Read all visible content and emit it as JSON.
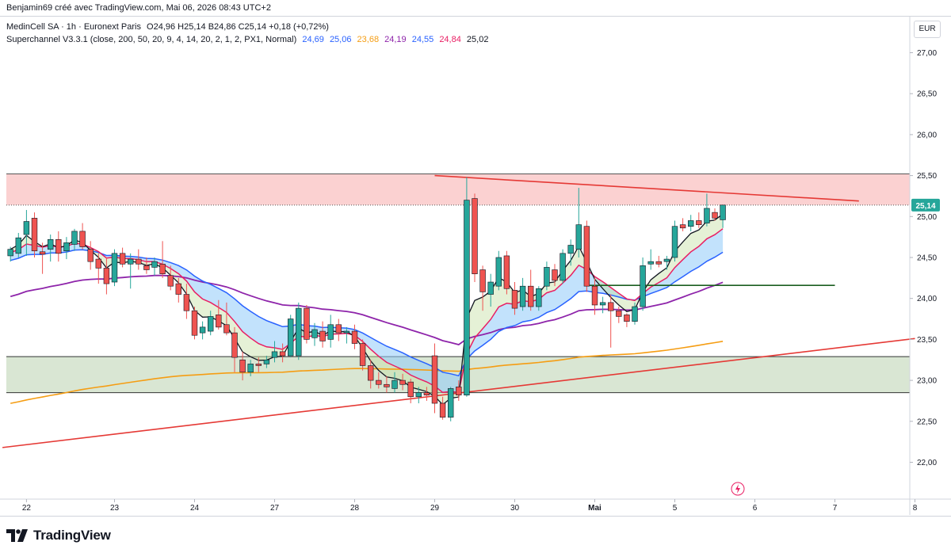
{
  "caption": "Benjamin69 créé avec TradingView.com, Mai 06, 2026 08:43 UTC+2",
  "legend": {
    "symbol_line": "MedinCell SA · 1h · Euronext Paris",
    "ohlc": "O24,96 H25,14 B24,86 C25,14 +0,18 (+0,72%)",
    "indicator_name": "Superchannel V3.3.1 (close, 200, 50, 20, 9, 4, 14, 20, 2, 1, 2, PX1, Normal)",
    "indicator_values": [
      {
        "text": "24,69",
        "color": "#2962ff"
      },
      {
        "text": "25,06",
        "color": "#2962ff"
      },
      {
        "text": "23,68",
        "color": "#f59d13"
      },
      {
        "text": "24,19",
        "color": "#8e24aa"
      },
      {
        "text": "24,55",
        "color": "#2962ff"
      },
      {
        "text": "24,84",
        "color": "#e91e63"
      },
      {
        "text": "25,02",
        "color": "#131722"
      }
    ]
  },
  "currency_label": "EUR",
  "brand": "TradingView",
  "colors": {
    "up": "#26a69a",
    "down": "#ef5350",
    "ema_fast": "#e91e63",
    "ema_slow": "#2962ff",
    "ema_50": "#8e24aa",
    "ema_200": "#f59d13",
    "trend_red": "#e53935",
    "support_line": "#1b5e20",
    "resistance_zone": "#f8b3b3",
    "support_zone": "#c9dcc0"
  },
  "chart_data": {
    "type": "candlestick",
    "title": "MedinCell SA · 1h · Euronext Paris",
    "y_axis_ticks": [
      "27,00",
      "26,50",
      "26,00",
      "25,50",
      "25,00",
      "24,50",
      "24,00",
      "23,50",
      "23,00",
      "22,50",
      "22,00"
    ],
    "x_axis_ticks": [
      "22",
      "23",
      "24",
      "27",
      "28",
      "29",
      "30",
      "Mai",
      "5",
      "6",
      "7",
      "8"
    ],
    "ylim": [
      21.55,
      27.45
    ],
    "last_price": 25.14,
    "last_price_label": "25,14",
    "candles": [
      {
        "o": 24.52,
        "h": 24.63,
        "l": 24.45,
        "c": 24.6
      },
      {
        "o": 24.55,
        "h": 24.8,
        "l": 24.5,
        "c": 24.74
      },
      {
        "o": 24.78,
        "h": 25.08,
        "l": 24.52,
        "c": 24.94
      },
      {
        "o": 24.98,
        "h": 25.05,
        "l": 24.5,
        "c": 24.58
      },
      {
        "o": 24.57,
        "h": 24.68,
        "l": 24.3,
        "c": 24.54
      },
      {
        "o": 24.6,
        "h": 24.78,
        "l": 24.45,
        "c": 24.72
      },
      {
        "o": 24.72,
        "h": 24.82,
        "l": 24.45,
        "c": 24.55
      },
      {
        "o": 24.58,
        "h": 24.75,
        "l": 24.48,
        "c": 24.68
      },
      {
        "o": 24.66,
        "h": 24.85,
        "l": 24.58,
        "c": 24.82
      },
      {
        "o": 24.82,
        "h": 24.92,
        "l": 24.6,
        "c": 24.63
      },
      {
        "o": 24.6,
        "h": 24.7,
        "l": 24.35,
        "c": 24.45
      },
      {
        "o": 24.48,
        "h": 24.55,
        "l": 24.18,
        "c": 24.37
      },
      {
        "o": 24.37,
        "h": 24.5,
        "l": 24.05,
        "c": 24.18
      },
      {
        "o": 24.2,
        "h": 24.6,
        "l": 24.15,
        "c": 24.55
      },
      {
        "o": 24.55,
        "h": 24.62,
        "l": 24.38,
        "c": 24.42
      },
      {
        "o": 24.42,
        "h": 24.55,
        "l": 24.12,
        "c": 24.48
      },
      {
        "o": 24.48,
        "h": 24.6,
        "l": 24.35,
        "c": 24.42
      },
      {
        "o": 24.4,
        "h": 24.5,
        "l": 24.3,
        "c": 24.35
      },
      {
        "o": 24.38,
        "h": 24.5,
        "l": 24.28,
        "c": 24.45
      },
      {
        "o": 24.42,
        "h": 24.7,
        "l": 24.25,
        "c": 24.3
      },
      {
        "o": 24.28,
        "h": 24.4,
        "l": 24.1,
        "c": 24.15
      },
      {
        "o": 24.18,
        "h": 24.25,
        "l": 23.95,
        "c": 24.05
      },
      {
        "o": 24.05,
        "h": 24.18,
        "l": 23.75,
        "c": 23.85
      },
      {
        "o": 23.85,
        "h": 23.9,
        "l": 23.5,
        "c": 23.55
      },
      {
        "o": 23.58,
        "h": 23.72,
        "l": 23.5,
        "c": 23.65
      },
      {
        "o": 23.6,
        "h": 23.85,
        "l": 23.55,
        "c": 23.78
      },
      {
        "o": 23.8,
        "h": 23.98,
        "l": 23.62,
        "c": 23.65
      },
      {
        "o": 23.68,
        "h": 23.95,
        "l": 23.55,
        "c": 23.58
      },
      {
        "o": 23.58,
        "h": 23.65,
        "l": 23.1,
        "c": 23.28
      },
      {
        "o": 23.25,
        "h": 23.35,
        "l": 23.0,
        "c": 23.1
      },
      {
        "o": 23.1,
        "h": 23.25,
        "l": 23.05,
        "c": 23.2
      },
      {
        "o": 23.2,
        "h": 23.28,
        "l": 23.1,
        "c": 23.18
      },
      {
        "o": 23.2,
        "h": 23.3,
        "l": 23.15,
        "c": 23.25
      },
      {
        "o": 23.28,
        "h": 23.48,
        "l": 23.22,
        "c": 23.35
      },
      {
        "o": 23.35,
        "h": 23.45,
        "l": 23.22,
        "c": 23.3
      },
      {
        "o": 23.3,
        "h": 23.8,
        "l": 23.28,
        "c": 23.75
      },
      {
        "o": 23.3,
        "h": 23.95,
        "l": 23.25,
        "c": 23.88
      },
      {
        "o": 23.88,
        "h": 23.92,
        "l": 23.45,
        "c": 23.5
      },
      {
        "o": 23.52,
        "h": 23.7,
        "l": 23.42,
        "c": 23.62
      },
      {
        "o": 23.6,
        "h": 23.72,
        "l": 23.4,
        "c": 23.48
      },
      {
        "o": 23.5,
        "h": 23.8,
        "l": 23.4,
        "c": 23.68
      },
      {
        "o": 23.68,
        "h": 23.75,
        "l": 23.48,
        "c": 23.58
      },
      {
        "o": 23.58,
        "h": 23.65,
        "l": 23.45,
        "c": 23.6
      },
      {
        "o": 23.6,
        "h": 23.68,
        "l": 23.38,
        "c": 23.45
      },
      {
        "o": 23.45,
        "h": 23.5,
        "l": 23.12,
        "c": 23.18
      },
      {
        "o": 23.18,
        "h": 23.25,
        "l": 22.9,
        "c": 23.0
      },
      {
        "o": 23.0,
        "h": 23.1,
        "l": 22.9,
        "c": 22.95
      },
      {
        "o": 22.95,
        "h": 23.05,
        "l": 22.85,
        "c": 22.92
      },
      {
        "o": 22.9,
        "h": 23.1,
        "l": 22.85,
        "c": 23.0
      },
      {
        "o": 23.0,
        "h": 23.08,
        "l": 22.88,
        "c": 22.95
      },
      {
        "o": 22.98,
        "h": 23.02,
        "l": 22.72,
        "c": 22.8
      },
      {
        "o": 22.8,
        "h": 22.92,
        "l": 22.72,
        "c": 22.85
      },
      {
        "o": 22.85,
        "h": 22.92,
        "l": 22.75,
        "c": 22.82
      },
      {
        "o": 23.3,
        "h": 23.45,
        "l": 22.6,
        "c": 22.72
      },
      {
        "o": 22.72,
        "h": 22.8,
        "l": 22.52,
        "c": 22.55
      },
      {
        "o": 22.55,
        "h": 22.92,
        "l": 22.5,
        "c": 22.9
      },
      {
        "o": 22.92,
        "h": 23.0,
        "l": 22.75,
        "c": 22.82
      },
      {
        "o": 22.82,
        "h": 25.48,
        "l": 22.8,
        "c": 25.2
      },
      {
        "o": 25.22,
        "h": 25.28,
        "l": 24.2,
        "c": 24.3
      },
      {
        "o": 24.35,
        "h": 24.4,
        "l": 23.85,
        "c": 24.08
      },
      {
        "o": 24.05,
        "h": 24.3,
        "l": 23.9,
        "c": 24.2
      },
      {
        "o": 24.15,
        "h": 24.58,
        "l": 24.1,
        "c": 24.5
      },
      {
        "o": 24.52,
        "h": 24.58,
        "l": 24.05,
        "c": 24.12
      },
      {
        "o": 24.1,
        "h": 24.2,
        "l": 23.8,
        "c": 23.88
      },
      {
        "o": 23.9,
        "h": 24.25,
        "l": 23.85,
        "c": 24.15
      },
      {
        "o": 24.15,
        "h": 24.35,
        "l": 23.85,
        "c": 23.9
      },
      {
        "o": 23.9,
        "h": 24.15,
        "l": 23.85,
        "c": 24.12
      },
      {
        "o": 24.15,
        "h": 24.45,
        "l": 24.1,
        "c": 24.38
      },
      {
        "o": 24.35,
        "h": 24.42,
        "l": 24.15,
        "c": 24.22
      },
      {
        "o": 24.22,
        "h": 24.6,
        "l": 24.18,
        "c": 24.55
      },
      {
        "o": 24.55,
        "h": 24.72,
        "l": 24.4,
        "c": 24.65
      },
      {
        "o": 24.6,
        "h": 25.35,
        "l": 24.5,
        "c": 24.9
      },
      {
        "o": 24.88,
        "h": 24.95,
        "l": 24.08,
        "c": 24.15
      },
      {
        "o": 24.15,
        "h": 24.25,
        "l": 23.8,
        "c": 23.92
      },
      {
        "o": 23.92,
        "h": 24.02,
        "l": 23.82,
        "c": 23.95
      },
      {
        "o": 23.95,
        "h": 24.05,
        "l": 23.4,
        "c": 23.85
      },
      {
        "o": 23.85,
        "h": 23.9,
        "l": 23.7,
        "c": 23.78
      },
      {
        "o": 23.8,
        "h": 23.82,
        "l": 23.65,
        "c": 23.72
      },
      {
        "o": 23.72,
        "h": 23.95,
        "l": 23.68,
        "c": 23.9
      },
      {
        "o": 23.9,
        "h": 24.5,
        "l": 23.85,
        "c": 24.4
      },
      {
        "o": 24.42,
        "h": 24.6,
        "l": 24.35,
        "c": 24.45
      },
      {
        "o": 24.45,
        "h": 24.52,
        "l": 24.38,
        "c": 24.42
      },
      {
        "o": 24.45,
        "h": 24.52,
        "l": 24.35,
        "c": 24.48
      },
      {
        "o": 24.5,
        "h": 24.95,
        "l": 24.45,
        "c": 24.88
      },
      {
        "o": 24.9,
        "h": 24.98,
        "l": 24.82,
        "c": 24.86
      },
      {
        "o": 24.88,
        "h": 25.02,
        "l": 24.82,
        "c": 24.95
      },
      {
        "o": 24.95,
        "h": 25.05,
        "l": 24.86,
        "c": 24.9
      },
      {
        "o": 24.92,
        "h": 25.28,
        "l": 24.88,
        "c": 25.1
      },
      {
        "o": 25.05,
        "h": 25.1,
        "l": 24.95,
        "c": 24.98
      },
      {
        "o": 24.96,
        "h": 25.14,
        "l": 24.86,
        "c": 25.14
      }
    ],
    "x_labels_at_candle": {
      "22": 2,
      "23": 13,
      "24": 23,
      "27": 33,
      "28": 43,
      "29": 53,
      "30": 63,
      "Mai": 73,
      "5": 83,
      "6": 93,
      "7": 103,
      "8": 113
    },
    "zones": [
      {
        "name": "resistance",
        "from": 25.14,
        "to": 25.52
      },
      {
        "name": "support",
        "from": 22.85,
        "to": 23.29
      }
    ],
    "support_level": 24.16,
    "trendlines": [
      {
        "name": "descending resistance",
        "x0": 53,
        "y0": 25.5,
        "x1": 106,
        "y1": 25.19
      },
      {
        "name": "ascending support",
        "x0": -1,
        "y0": 22.18,
        "x1": 113,
        "y1": 23.51
      }
    ]
  }
}
